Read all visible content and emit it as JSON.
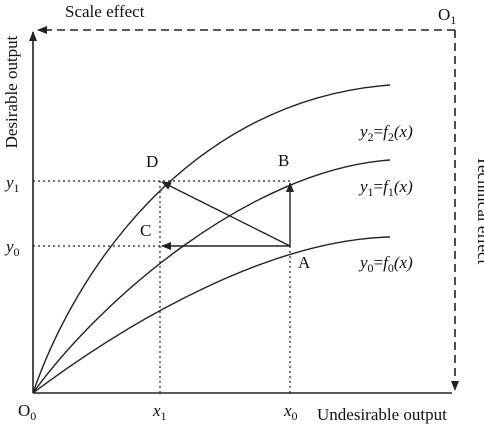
{
  "labels": {
    "scale_effect": "Scale effect",
    "technical_effect": "Technical effect",
    "y_axis": "Desirable output",
    "x_axis": "Undesirable output"
  },
  "origins": [
    {
      "base": "O",
      "sub": "0"
    },
    {
      "base": "O",
      "sub": "1"
    }
  ],
  "x_ticks": [
    {
      "base": "x",
      "sub": "1"
    },
    {
      "base": "x",
      "sub": "0"
    }
  ],
  "y_ticks": [
    {
      "base": "y",
      "sub": "1"
    },
    {
      "base": "y",
      "sub": "0"
    }
  ],
  "points": [
    "D",
    "B",
    "C",
    "A"
  ],
  "curves": [
    {
      "lhs": "y",
      "lhs_sub": "2",
      "eq": "=",
      "fn": "f",
      "fn_sub": "2",
      "arg": "(x)"
    },
    {
      "lhs": "y",
      "lhs_sub": "1",
      "eq": "=",
      "fn": "f",
      "fn_sub": "1",
      "arg": "(x)"
    },
    {
      "lhs": "y",
      "lhs_sub": "0",
      "eq": "=",
      "fn": "f",
      "fn_sub": "0",
      "arg": "(x)"
    }
  ]
}
